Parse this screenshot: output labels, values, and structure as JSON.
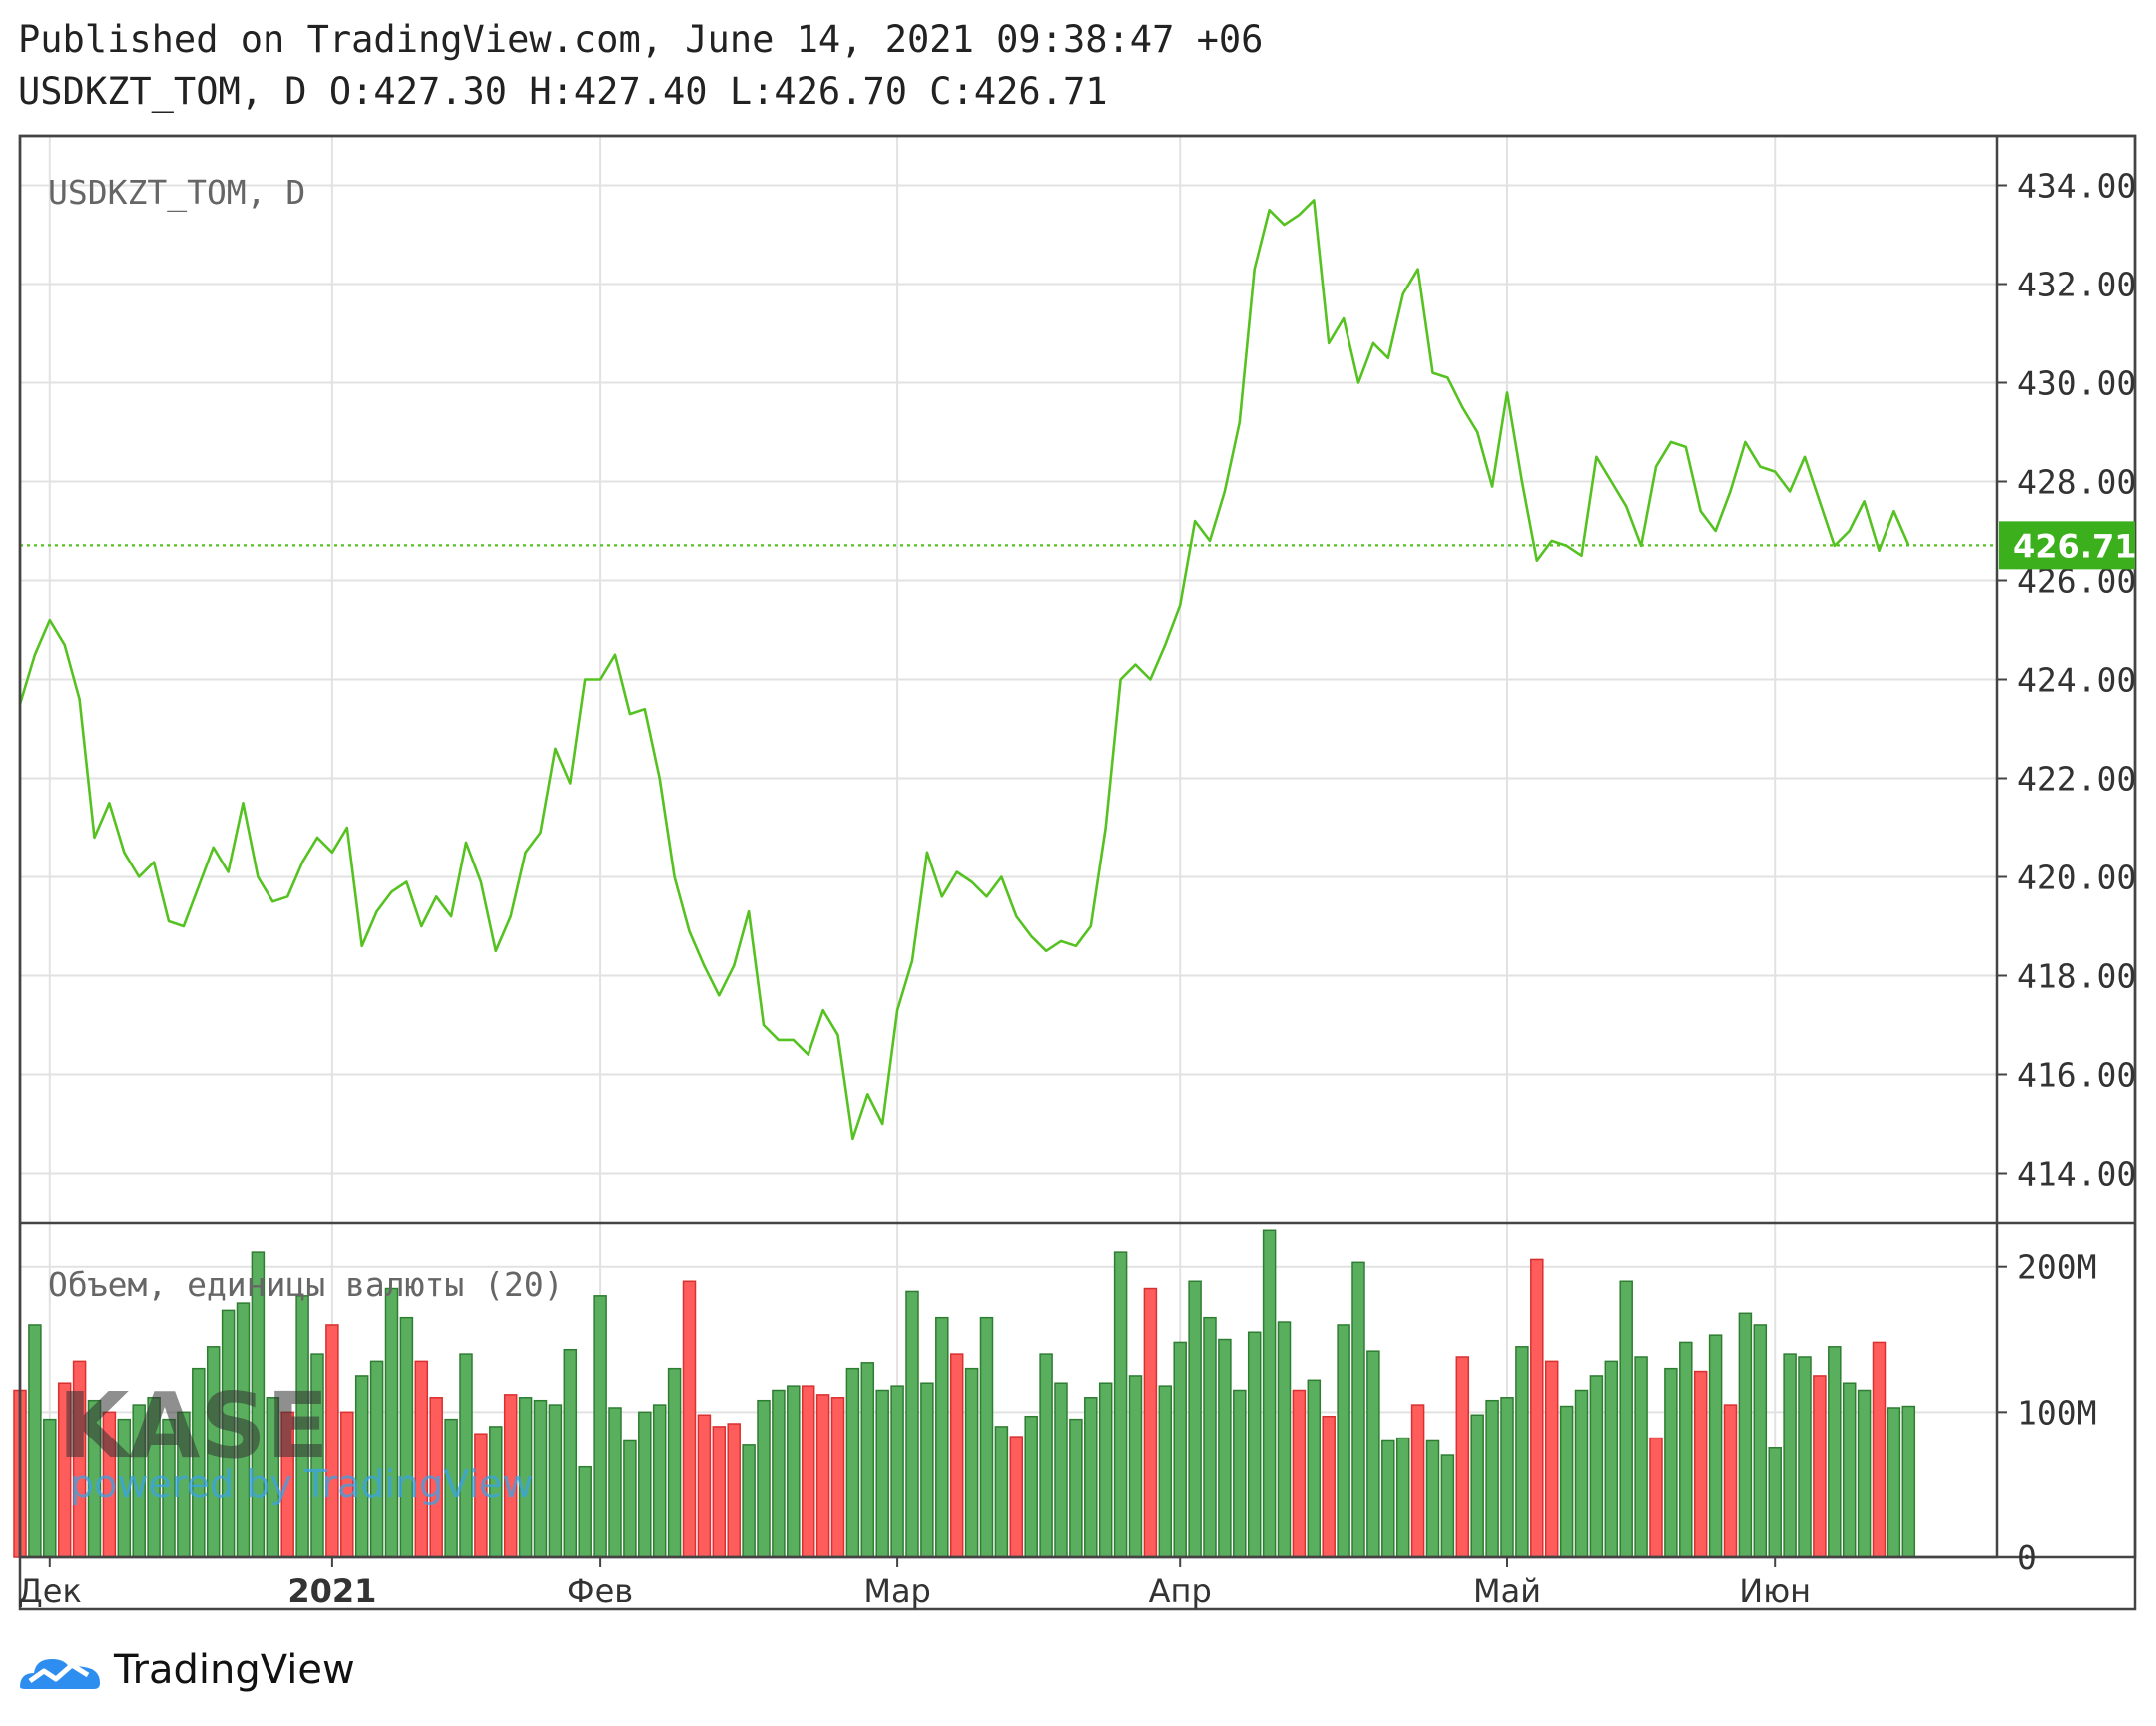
{
  "header": {
    "published": "Published on TradingView.com, June 14, 2021 09:38:47 +06",
    "ohlc": "USDKZT_TOM, D O:427.30 H:427.40 L:426.70 C:426.71"
  },
  "watermark": {
    "logo_text": "KASE",
    "powered": "powered by TradingView"
  },
  "footer": {
    "brand": "TradingView",
    "icon": "tradingview-cloud-icon"
  },
  "colors": {
    "line": "#55c221",
    "up": "#5aaf5e",
    "down": "#ff5c5c",
    "grid": "#e2e2e2",
    "last_label_bg": "#3cb01c",
    "frame": "#444444"
  },
  "chart_data": [
    {
      "type": "line",
      "title": "USDKZT_TOM, D",
      "ylim": [
        413.0,
        435.0
      ],
      "y_ticks": [
        "434.00",
        "432.00",
        "430.00",
        "428.00",
        "426.00",
        "424.00",
        "422.00",
        "420.00",
        "418.00",
        "416.00",
        "414.00"
      ],
      "x_tick_labels": [
        {
          "label": "Дек",
          "index": 2,
          "bold": false
        },
        {
          "label": "2021",
          "index": 21,
          "bold": true
        },
        {
          "label": "Фев",
          "index": 39,
          "bold": false
        },
        {
          "label": "Мар",
          "index": 59,
          "bold": false
        },
        {
          "label": "Апр",
          "index": 78,
          "bold": false
        },
        {
          "label": "Май",
          "index": 100,
          "bold": false
        },
        {
          "label": "Июн",
          "index": 118,
          "bold": false
        }
      ],
      "last_value": "426.71",
      "series": [
        {
          "values": [
            423.5,
            424.5,
            425.2,
            424.7,
            423.6,
            420.8,
            421.5,
            420.5,
            420.0,
            420.3,
            419.1,
            419.0,
            419.8,
            420.6,
            420.1,
            421.5,
            420.0,
            419.5,
            419.6,
            420.3,
            420.8,
            420.5,
            421.0,
            418.6,
            419.3,
            419.7,
            419.9,
            419.0,
            419.6,
            419.2,
            420.7,
            419.9,
            418.5,
            419.2,
            420.5,
            420.9,
            422.6,
            421.9,
            424.0,
            424.0,
            424.5,
            423.3,
            423.4,
            422.0,
            420.0,
            418.9,
            418.2,
            417.6,
            418.2,
            419.3,
            417.0,
            416.7,
            416.7,
            416.4,
            417.3,
            416.8,
            414.7,
            415.6,
            415.0,
            417.3,
            418.3,
            420.5,
            419.6,
            420.1,
            419.9,
            419.6,
            420.0,
            419.2,
            418.8,
            418.5,
            418.7,
            418.6,
            419.0,
            421.0,
            424.0,
            424.3,
            424.0,
            424.7,
            425.5,
            427.2,
            426.8,
            427.8,
            429.2,
            432.3,
            433.5,
            433.2,
            433.4,
            433.7,
            430.8,
            431.3,
            430.0,
            430.8,
            430.5,
            431.8,
            432.3,
            430.2,
            430.1,
            429.5,
            429.0,
            427.9,
            429.8,
            428.0,
            426.4,
            426.8,
            426.7,
            426.5,
            428.5,
            428.0,
            427.5,
            426.7,
            428.3,
            428.8,
            428.7,
            427.4,
            427.0,
            427.8,
            428.8,
            428.3,
            428.2,
            427.8,
            428.5,
            427.6,
            426.7,
            427.0,
            427.6,
            426.6,
            427.4,
            426.71
          ]
        }
      ]
    },
    {
      "type": "bar",
      "title": "Объем, единицы валюты (20)",
      "ylim": [
        0,
        230
      ],
      "y_ticks": [
        "200M",
        "100M",
        "0"
      ],
      "series": [
        {
          "values": [
            115,
            160,
            95,
            120,
            135,
            108,
            100,
            95,
            105,
            110,
            95,
            100,
            130,
            145,
            170,
            175,
            210,
            110,
            100,
            180,
            140,
            160,
            100,
            125,
            135,
            185,
            165,
            135,
            110,
            95,
            140,
            85,
            90,
            112,
            110,
            108,
            105,
            143,
            62,
            180,
            103,
            80,
            100,
            105,
            130,
            190,
            98,
            90,
            92,
            77,
            108,
            115,
            118,
            118,
            112,
            110,
            130,
            134,
            115,
            118,
            183,
            120,
            165,
            140,
            130,
            165,
            90,
            83,
            97,
            140,
            120,
            95,
            110,
            120,
            210,
            125,
            185,
            118,
            148,
            190,
            165,
            150,
            115,
            155,
            225,
            162,
            115,
            122,
            97,
            160,
            203,
            142,
            80,
            82,
            105,
            80,
            70,
            138,
            98,
            108,
            110,
            145,
            205,
            135,
            104,
            115,
            125,
            135,
            190,
            138,
            82,
            130,
            148,
            128,
            153,
            105,
            168,
            160,
            75,
            140,
            138,
            125,
            145,
            120,
            115,
            148,
            103,
            104
          ],
          "colors": "DUUDDUDUUUUUUUUUUUDUUDDUUUUDDUUDUDUUUUUUUUUUUDDDDUUUUDDDUUUUUUUDUUUDUUUUUUUUDUUUUUUUUUDUDUUUUUDUUDUUUUDDUUUUUUDUUDUDUUUUUDUUUDUUUUD"
        }
      ]
    }
  ]
}
